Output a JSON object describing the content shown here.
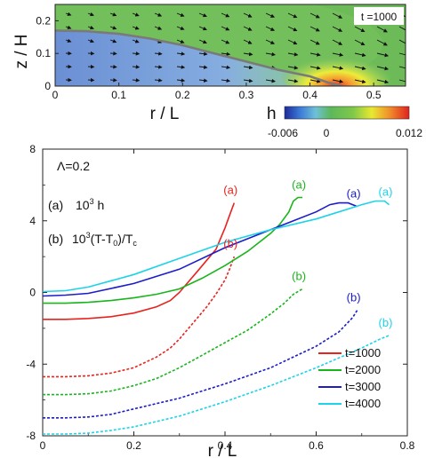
{
  "colors": {
    "t1000": "#e8231e",
    "t2000": "#18b51c",
    "t3000": "#1c1cc8",
    "t4000": "#1ed2e8",
    "interface": "#7a7a7a"
  },
  "top_panel": {
    "time_label": "t =1000",
    "xlabel": "r / L",
    "ylabel": "z / H",
    "x_ticks": [
      "0",
      "0.1",
      "0.2",
      "0.3",
      "0.4",
      "0.5"
    ],
    "y_ticks": [
      "0",
      "0.1",
      "0.2"
    ],
    "colorbar_title": "h",
    "colorbar_ticks": [
      "-0.006",
      "0",
      "0.012"
    ],
    "colorbar_range": [
      -0.006,
      0.012
    ]
  },
  "annotations": {
    "lambda": "Λ=0.2",
    "line_a_tag": "(a)",
    "line_a_expr": "10",
    "line_a_exp": "3",
    "line_a_var": " h",
    "line_b_tag": "(b)",
    "line_b_expr": "10",
    "line_b_exp": "3",
    "line_b_rest": "(T-T",
    "line_b_sub": "0",
    "line_b_tail": ")/T",
    "line_b_sub2": "c",
    "curve_tag_a": "(a)",
    "curve_tag_b": "(b)"
  },
  "chart_data": [
    {
      "type": "heatmap",
      "title": "t =1000",
      "xlabel": "r / L",
      "ylabel": "z / H",
      "xlim": [
        0,
        0.55
      ],
      "ylim": [
        0,
        0.25
      ],
      "colorbar_label": "h",
      "colorbar_range": [
        -0.006,
        0.012
      ],
      "interface": {
        "x": [
          0,
          0.05,
          0.1,
          0.15,
          0.2,
          0.25,
          0.3,
          0.35,
          0.4,
          0.43,
          0.45
        ],
        "y": [
          0.17,
          0.168,
          0.16,
          0.145,
          0.125,
          0.1,
          0.075,
          0.05,
          0.03,
          0.01,
          0
        ]
      }
    },
    {
      "type": "line",
      "xlabel": "r / L",
      "ylabel": "",
      "xlim": [
        0,
        0.8
      ],
      "ylim": [
        -8,
        8
      ],
      "x_ticks": [
        "0",
        "0.2",
        "0.4",
        "0.6",
        "0.8"
      ],
      "y_ticks": [
        "-8",
        "-4",
        "0",
        "4",
        "8"
      ],
      "legend_position": "bottom-right",
      "series": [
        {
          "name": "t=1000",
          "style": "solid",
          "group": "(a)",
          "x": [
            0,
            0.05,
            0.1,
            0.15,
            0.2,
            0.25,
            0.28,
            0.3,
            0.32,
            0.34,
            0.36,
            0.38,
            0.39,
            0.4,
            0.41,
            0.42
          ],
          "y": [
            -1.5,
            -1.5,
            -1.45,
            -1.35,
            -1.15,
            -0.8,
            -0.45,
            0,
            0.6,
            1.2,
            1.8,
            2.4,
            3.0,
            3.6,
            4.3,
            5.0
          ]
        },
        {
          "name": "t=1000",
          "style": "dashed",
          "group": "(b)",
          "x": [
            0,
            0.05,
            0.1,
            0.15,
            0.2,
            0.25,
            0.28,
            0.3,
            0.32,
            0.34,
            0.36,
            0.38,
            0.4,
            0.41,
            0.42
          ],
          "y": [
            -4.7,
            -4.7,
            -4.65,
            -4.5,
            -4.2,
            -3.6,
            -3.1,
            -2.6,
            -2.0,
            -1.4,
            -0.8,
            -0.1,
            0.7,
            1.3,
            2.0
          ]
        },
        {
          "name": "t=2000",
          "style": "solid",
          "group": "(a)",
          "x": [
            0,
            0.05,
            0.1,
            0.15,
            0.2,
            0.25,
            0.3,
            0.35,
            0.4,
            0.45,
            0.5,
            0.52,
            0.54,
            0.55,
            0.56,
            0.57
          ],
          "y": [
            -0.6,
            -0.6,
            -0.55,
            -0.45,
            -0.3,
            -0.1,
            0.2,
            0.8,
            1.5,
            2.3,
            3.3,
            3.8,
            4.5,
            5.1,
            5.3,
            5.3
          ]
        },
        {
          "name": "t=2000",
          "style": "dashed",
          "group": "(b)",
          "x": [
            0,
            0.05,
            0.1,
            0.15,
            0.2,
            0.25,
            0.3,
            0.35,
            0.4,
            0.45,
            0.5,
            0.53,
            0.55,
            0.57
          ],
          "y": [
            -5.7,
            -5.7,
            -5.65,
            -5.5,
            -5.2,
            -4.8,
            -4.2,
            -3.5,
            -2.8,
            -2.1,
            -1.2,
            -0.6,
            -0.1,
            0.2
          ]
        },
        {
          "name": "t=3000",
          "style": "solid",
          "group": "(a)",
          "x": [
            0,
            0.05,
            0.1,
            0.2,
            0.3,
            0.4,
            0.5,
            0.55,
            0.6,
            0.63,
            0.65,
            0.67,
            0.69
          ],
          "y": [
            -0.2,
            -0.15,
            -0.05,
            0.5,
            1.3,
            2.5,
            3.5,
            4.0,
            4.5,
            4.9,
            5.0,
            5.0,
            4.8
          ]
        },
        {
          "name": "t=3000",
          "style": "dashed",
          "group": "(b)",
          "x": [
            0,
            0.05,
            0.1,
            0.15,
            0.2,
            0.3,
            0.4,
            0.5,
            0.6,
            0.65,
            0.68,
            0.69
          ],
          "y": [
            -7.0,
            -7.0,
            -6.95,
            -6.8,
            -6.5,
            -5.9,
            -5.1,
            -4.2,
            -3.0,
            -2.2,
            -1.4,
            -1.0
          ]
        },
        {
          "name": "t=4000",
          "style": "solid",
          "group": "(a)",
          "x": [
            0,
            0.05,
            0.1,
            0.2,
            0.3,
            0.4,
            0.5,
            0.6,
            0.65,
            0.7,
            0.73,
            0.75,
            0.76
          ],
          "y": [
            0.05,
            0.1,
            0.3,
            1.0,
            1.9,
            2.8,
            3.5,
            4.1,
            4.5,
            4.9,
            5.1,
            5.1,
            4.9
          ]
        },
        {
          "name": "t=4000",
          "style": "dashed",
          "group": "(b)",
          "x": [
            0,
            0.05,
            0.1,
            0.15,
            0.2,
            0.3,
            0.4,
            0.5,
            0.6,
            0.7,
            0.74,
            0.76
          ],
          "y": [
            -7.9,
            -7.9,
            -7.85,
            -7.7,
            -7.5,
            -6.9,
            -6.1,
            -5.2,
            -4.2,
            -3.1,
            -2.6,
            -2.4
          ]
        }
      ]
    }
  ]
}
